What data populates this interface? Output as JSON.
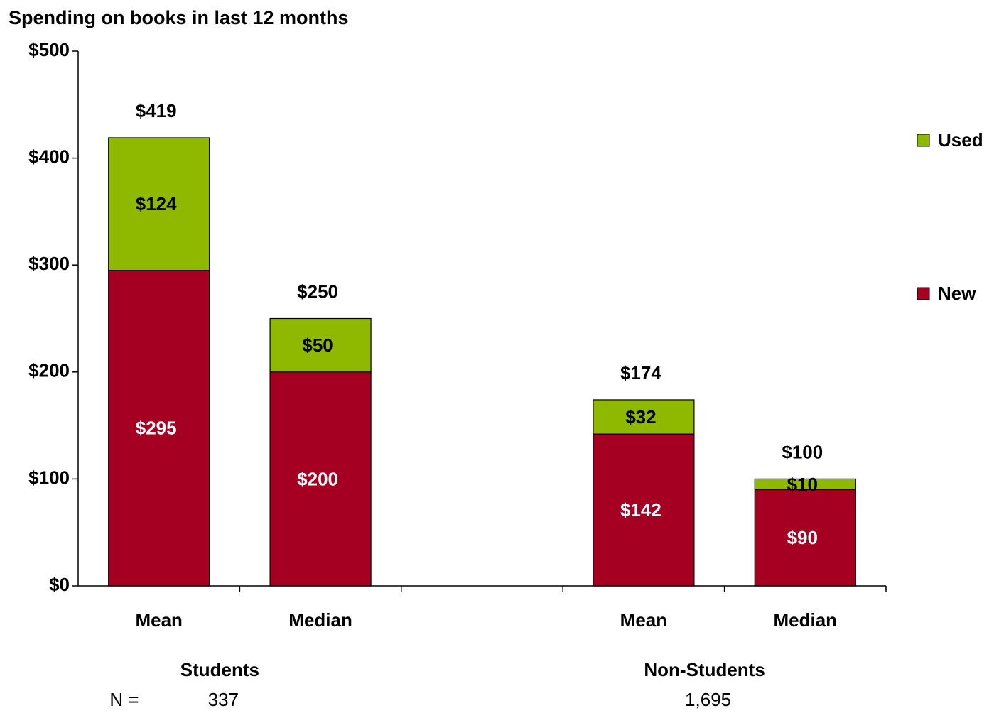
{
  "chart_data": {
    "type": "stacked-bar",
    "title": "Spending on books in last 12 months",
    "categories": [
      "Mean",
      "Median",
      null,
      "Mean",
      "Median"
    ],
    "series": [
      {
        "name": "New",
        "color": "#a50021",
        "values": [
          295,
          200,
          null,
          142,
          90
        ],
        "value_labels": [
          "$295",
          "$200",
          null,
          "$142",
          "$90"
        ]
      },
      {
        "name": "Used",
        "color": "#8fb800",
        "values": [
          124,
          50,
          null,
          32,
          10
        ],
        "value_labels": [
          "$124",
          "$50",
          null,
          "$32",
          "$10"
        ]
      }
    ],
    "totals": {
      "values": [
        419,
        250,
        null,
        174,
        100
      ],
      "value_labels": [
        "$419",
        "$250",
        null,
        "$174",
        "$100"
      ]
    },
    "ylim": [
      0,
      500
    ],
    "yticks": [
      {
        "value": 0,
        "label": "$0"
      },
      {
        "value": 100,
        "label": "$100"
      },
      {
        "value": 200,
        "label": "$200"
      },
      {
        "value": 300,
        "label": "$300"
      },
      {
        "value": 400,
        "label": "$400"
      },
      {
        "value": 500,
        "label": "$500"
      }
    ],
    "groups": [
      {
        "label": "Students",
        "n": 337
      },
      {
        "label": "Non-Students",
        "n": {
          "value": 1695,
          "label": "1,695"
        }
      }
    ],
    "n_label": "N =",
    "legend": "right"
  }
}
